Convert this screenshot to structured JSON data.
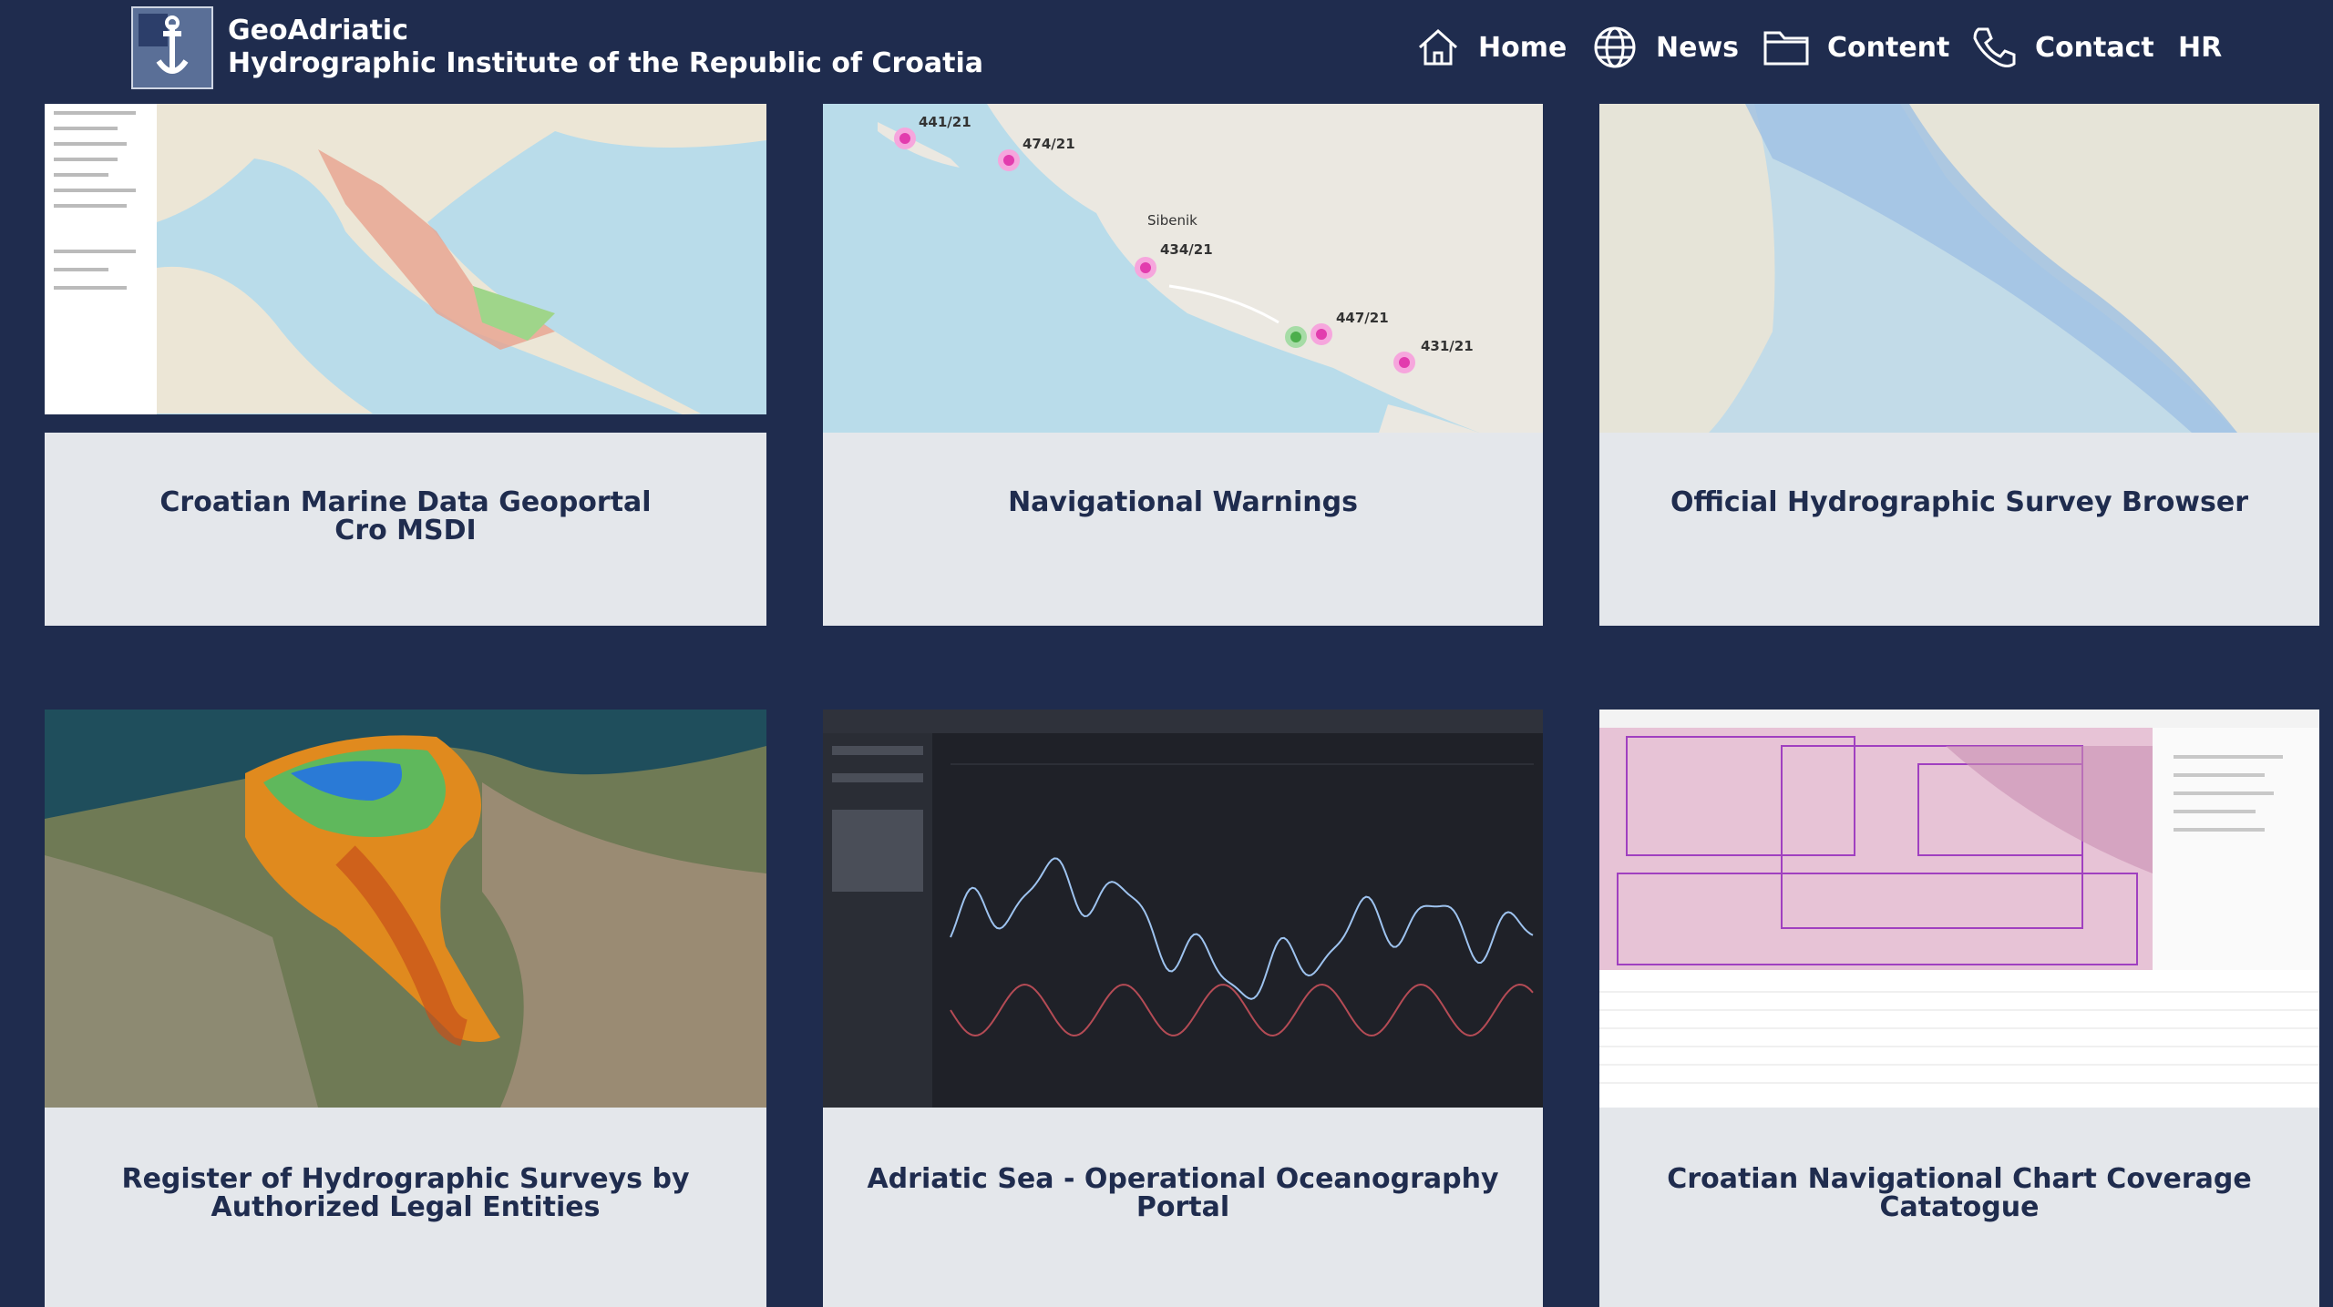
{
  "header": {
    "title": "GeoAdriatic",
    "subtitle": "Hydrographic Institute of the Republic of Croatia"
  },
  "nav": [
    "Home",
    "News",
    "Content",
    "Contact",
    "HR"
  ],
  "cards": [
    {
      "title_lines": [
        "Croatian Marine Data Geoportal",
        "Cro MSDI"
      ]
    },
    {
      "title_lines": [
        "Navigational Warnings"
      ],
      "map_labels": [
        "441/21",
        "474/21",
        "434/21",
        "447/21",
        "431/21",
        "Sibenik"
      ]
    },
    {
      "title_lines": [
        "Official Hydrographic Survey Browser"
      ]
    },
    {
      "title_lines": [
        "Register of Hydrographic Surveys by",
        "Authorized Legal Entities"
      ]
    },
    {
      "title_lines": [
        "Adriatic Sea - Operational Oceanography",
        "Portal"
      ]
    },
    {
      "title_lines": [
        "Croatian Navigational Chart Coverage",
        "Catatogue"
      ]
    }
  ]
}
